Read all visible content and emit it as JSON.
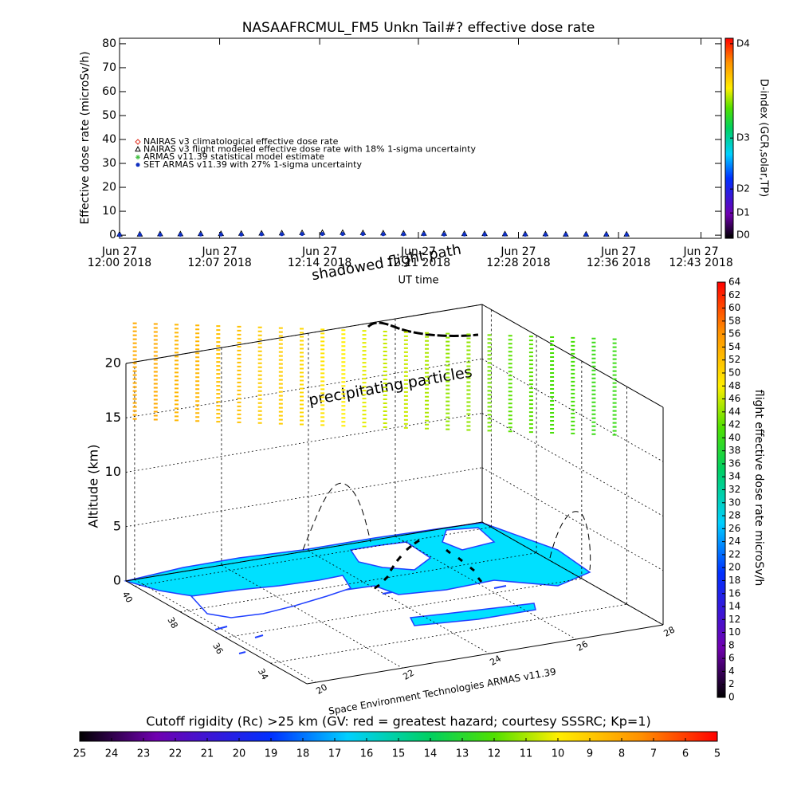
{
  "chart_data": [
    {
      "type": "scatter",
      "title": "NASAAFRCMUL_FM5 Unkn Tail#? effective dose rate",
      "y_label": "Effective dose rate (microSv/h)",
      "x_label": "UT time",
      "xlim": [
        0,
        44.5
      ],
      "xticks": [
        {
          "value": 0,
          "label": [
            "Jun 27",
            "12:00 2018"
          ]
        },
        {
          "value": 7.4,
          "label": [
            "Jun 27",
            "12:07 2018"
          ]
        },
        {
          "value": 14.8,
          "label": [
            "Jun 27",
            "12:14 2018"
          ]
        },
        {
          "value": 22.1,
          "label": [
            "Jun 27",
            "12:21 2018"
          ]
        },
        {
          "value": 29.5,
          "label": [
            "Jun 27",
            "12:28 2018"
          ]
        },
        {
          "value": 36.9,
          "label": [
            "Jun 27",
            "12:36 2018"
          ]
        },
        {
          "value": 43,
          "label": [
            "Jun 27",
            "12:43 2018"
          ]
        }
      ],
      "ylim": [
        -1.3,
        82.3
      ],
      "yticks": [
        0,
        10,
        20,
        30,
        40,
        50,
        60,
        70,
        80
      ],
      "x": [
        0,
        1.5,
        3,
        4.5,
        6,
        7.5,
        9,
        10.5,
        12,
        13.5,
        15,
        16.5,
        18,
        19.5,
        21,
        22.5,
        24,
        25.5,
        27,
        28.5,
        30,
        31.5,
        33,
        34.5,
        36,
        37.5
      ],
      "series": [
        {
          "name": "NAIRAS v3 climatological effective dose rate",
          "color": "#e03020",
          "marker": "diamond",
          "values": [
            null,
            null,
            null,
            null,
            null,
            null,
            null,
            null,
            null,
            null,
            null,
            null,
            null,
            null,
            null,
            null,
            null,
            null,
            null,
            null,
            null,
            null,
            null,
            null,
            null,
            null
          ]
        },
        {
          "name": "NAIRAS v3 flight modeled effective dose rate with 18% 1-sigma uncertainty",
          "color": "#000000",
          "marker": "triangle",
          "values": [
            0.3,
            0.3,
            0.4,
            0.4,
            0.5,
            0.5,
            0.6,
            0.7,
            0.8,
            0.9,
            1.0,
            1.0,
            0.9,
            0.8,
            0.7,
            0.6,
            0.6,
            0.5,
            0.5,
            0.4,
            0.4,
            0.4,
            0.3,
            0.3,
            0.3,
            0.3
          ]
        },
        {
          "name": "ARMAS v11.39 statistical model estimate",
          "color": "#40c040",
          "marker": "asterisk",
          "values": [
            null,
            null,
            null,
            null,
            null,
            null,
            null,
            null,
            null,
            null,
            null,
            null,
            null,
            null,
            null,
            null,
            null,
            null,
            null,
            null,
            null,
            null,
            null,
            null,
            null,
            null
          ]
        },
        {
          "name": "SET ARMAS v11.39 with 27% 1-sigma uncertainty",
          "color": "#1030c0",
          "marker": "dot",
          "values": [
            0.1,
            0.2,
            0.2,
            0.2,
            0.3,
            0.3,
            0.3,
            0.4,
            0.4,
            0.5,
            0.5,
            0.5,
            0.5,
            0.4,
            0.4,
            0.4,
            0.3,
            0.3,
            0.3,
            0.3,
            0.2,
            0.2,
            0.2,
            0.2,
            0.2,
            0.2
          ]
        }
      ],
      "colorbar": {
        "label": "D-index (GCR,solar,TP)",
        "yticks": [
          {
            "value": 0,
            "label": "D0"
          },
          {
            "value": 9.3,
            "label": "D1"
          },
          {
            "value": 19.3,
            "label": "D2"
          },
          {
            "value": 40.6,
            "label": "D3"
          },
          {
            "value": 80,
            "label": "D4"
          }
        ]
      }
    },
    {
      "type": "scatter3d",
      "z_label": "Altitude (km)",
      "annotations": [
        "shadowed flight path",
        "precipitating particles"
      ],
      "credit": "Space Environment Technologies ARMAS v11.39",
      "xlim": [
        19.8,
        28.0
      ],
      "xticks": [
        20,
        22,
        24,
        26,
        28
      ],
      "ylim": [
        40.4,
        32.4
      ],
      "yticks": [
        40,
        38,
        36,
        34
      ],
      "zlim": [
        0,
        20
      ],
      "zticks": [
        0,
        5,
        10,
        15,
        20
      ],
      "x": [
        19.9,
        20.25,
        20.6,
        20.95,
        21.3,
        21.65,
        22.0,
        22.35,
        22.7,
        23.05,
        23.4,
        23.75,
        24.1,
        24.45,
        24.8,
        25.15,
        25.5,
        25.85,
        26.2,
        26.55,
        26.9,
        27.25,
        27.6,
        27.95
      ],
      "y": [
        40.2,
        39.95,
        39.7,
        39.45,
        39.2,
        38.95,
        38.7,
        38.45,
        38.2,
        37.95,
        37.7,
        37.45,
        37.2,
        36.95,
        36.7,
        36.45,
        36.2,
        35.95,
        35.7,
        35.45,
        35.2,
        34.95,
        34.7,
        34.45
      ],
      "values": [
        54,
        54,
        53,
        53,
        52,
        52,
        51,
        51,
        50,
        49,
        48,
        47,
        46,
        46,
        45,
        44,
        44,
        43,
        42,
        42,
        41,
        41,
        40,
        40
      ],
      "colorbar": {
        "label": "flight effective dose rate microSv/h",
        "ylim": [
          0,
          64
        ],
        "yticks": [
          0,
          2,
          4,
          6,
          8,
          10,
          12,
          14,
          16,
          18,
          20,
          22,
          24,
          26,
          28,
          30,
          32,
          34,
          36,
          38,
          40,
          42,
          44,
          46,
          48,
          50,
          52,
          54,
          56,
          58,
          60,
          62,
          64
        ]
      }
    },
    {
      "type": "colorbar",
      "title": "Cutoff rigidity (Rc) >25 km (GV: red = greatest hazard; courtesy SSSRC; Kp=1)",
      "xlim": [
        25,
        5
      ],
      "xticks": [
        25,
        24,
        23,
        22,
        21,
        20,
        19,
        18,
        17,
        16,
        15,
        14,
        13,
        12,
        11,
        10,
        9,
        8,
        7,
        6,
        5
      ]
    }
  ]
}
